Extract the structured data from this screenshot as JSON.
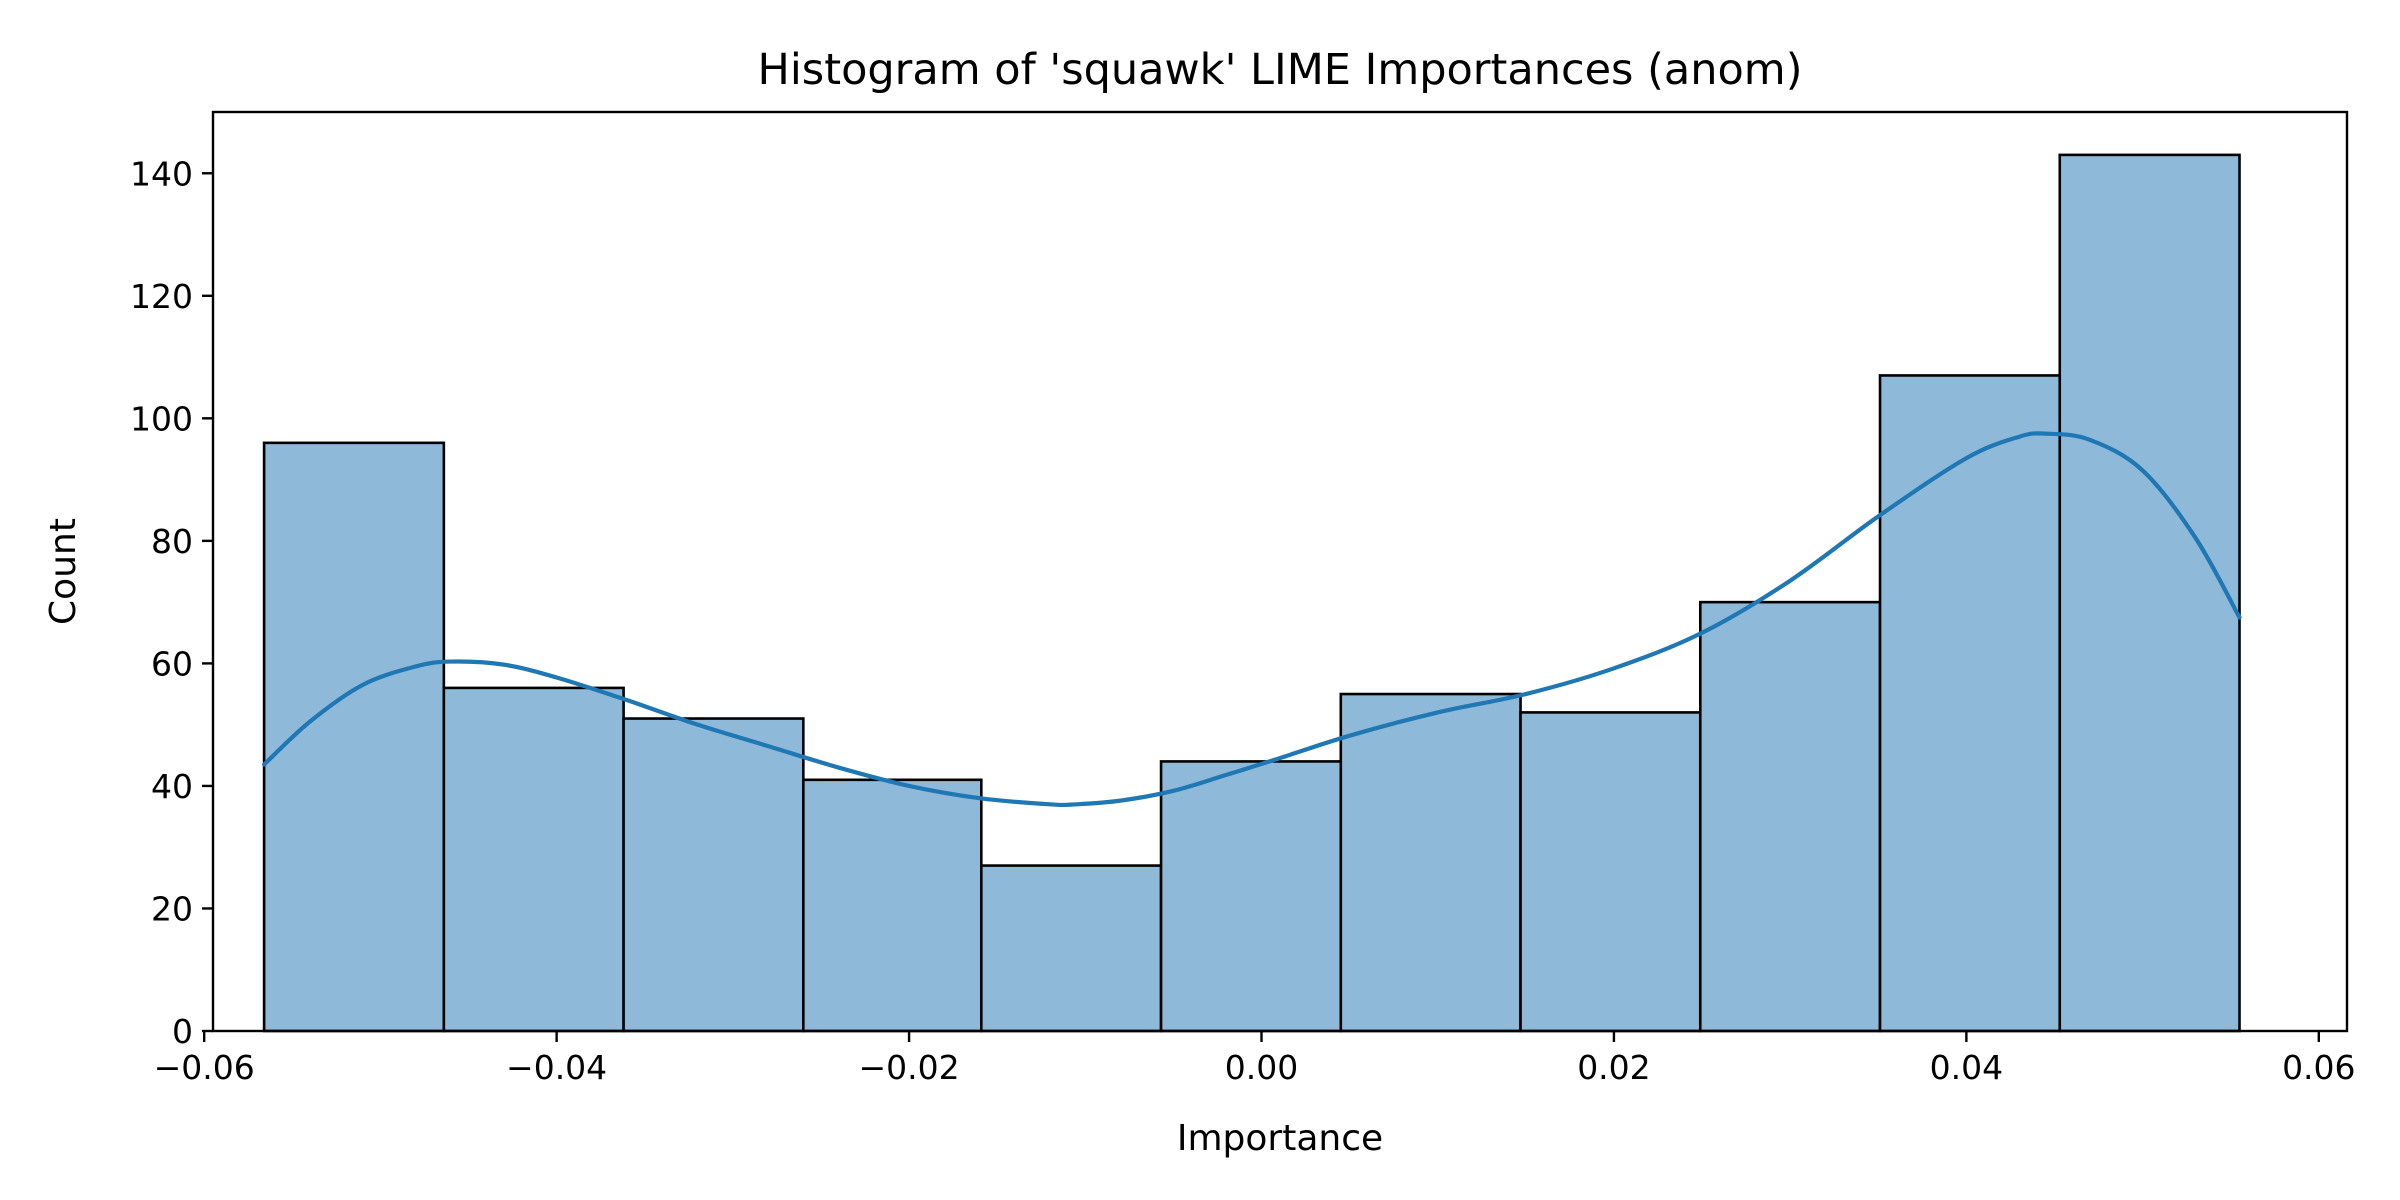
{
  "chart_data": {
    "type": "bar",
    "subtype": "histogram_with_kde",
    "title": "Histogram of 'squawk' LIME Importances (anom)",
    "xlabel": "Importance",
    "ylabel": "Count",
    "xlim": [
      -0.0595,
      0.0616
    ],
    "ylim": [
      0,
      150
    ],
    "xticks": [
      -0.06,
      -0.04,
      -0.02,
      0.0,
      0.02,
      0.04,
      0.06
    ],
    "xtick_labels": [
      "−0.06",
      "−0.04",
      "−0.02",
      "0.00",
      "0.02",
      "0.04",
      "0.06"
    ],
    "yticks": [
      0,
      20,
      40,
      60,
      80,
      100,
      120,
      140
    ],
    "ytick_labels": [
      "0",
      "20",
      "40",
      "60",
      "80",
      "100",
      "120",
      "140"
    ],
    "grid": false,
    "legend": "none",
    "bin_edges": [
      -0.0566,
      -0.0464,
      -0.0362,
      -0.026,
      -0.0159,
      -0.0057,
      0.0045,
      0.0147,
      0.0249,
      0.0351,
      0.0453,
      0.0555
    ],
    "values": [
      96,
      56,
      51,
      41,
      27,
      44,
      55,
      52,
      70,
      107,
      143
    ],
    "bar_color": "#8fb9d9",
    "edge_color": "#000000",
    "kde": {
      "color": "#1f77b4",
      "x": [
        -0.0566,
        -0.054,
        -0.051,
        -0.048,
        -0.046,
        -0.043,
        -0.04,
        -0.036,
        -0.032,
        -0.028,
        -0.024,
        -0.02,
        -0.016,
        -0.012,
        -0.0105,
        -0.008,
        -0.005,
        -0.002,
        0.001,
        0.005,
        0.01,
        0.015,
        0.02,
        0.025,
        0.03,
        0.035,
        0.04,
        0.043,
        0.0445,
        0.047,
        0.05,
        0.053,
        0.0555
      ],
      "y": [
        43.5,
        50.5,
        56.5,
        59.5,
        60.3,
        59.8,
        57.7,
        54.0,
        50.0,
        46.5,
        43.0,
        40.0,
        38.0,
        37.0,
        37.0,
        37.6,
        39.2,
        41.8,
        44.5,
        48.2,
        52.0,
        55.0,
        59.2,
        65.0,
        73.5,
        84.0,
        93.5,
        97.0,
        97.5,
        96.5,
        91.5,
        80.5,
        67.5
      ]
    }
  }
}
